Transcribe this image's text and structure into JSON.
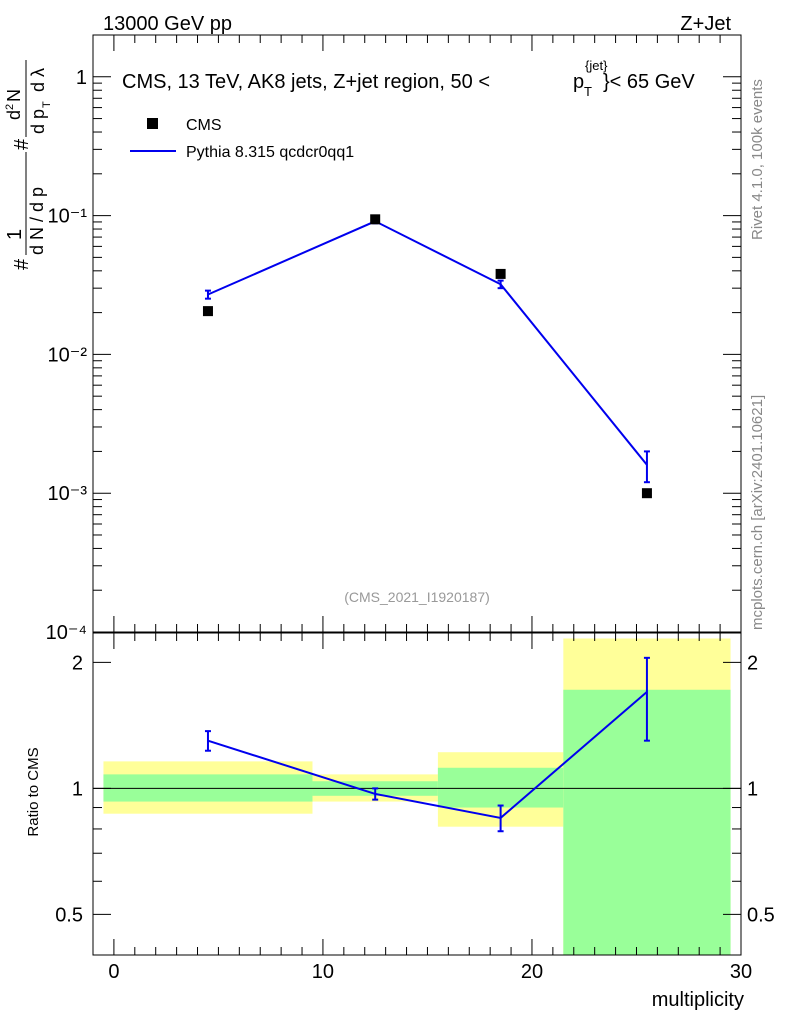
{
  "header": {
    "left": "13000 GeV pp",
    "right": "Z+Jet"
  },
  "side_text": {
    "rivet": "Rivet 4.1.0,  100k events",
    "mcplots": "mcplots.cern.ch [arXiv:2401.10621]"
  },
  "chart_data": [
    {
      "type": "line",
      "panel": "main",
      "title": "CMS, 13 TeV, AK8 jets, Z+jet region, 50 <p_T^{jet}< 65 GeV",
      "title_parts": {
        "pre": "CMS, 13 TeV, AK8 jets, Z+jet region, 50 <",
        "p": "p",
        "sub": "T",
        "sup": "{jet}",
        "post": "}< 65 GeV"
      },
      "ylabel": "1/#dN/dp_T #d²N/dp_T dλ",
      "ylabel_parts": {
        "hash": "#",
        "one": "1",
        "dN": "d N / d p",
        "dN2": "d",
        "N": "N",
        "pT": "d p",
        "T": "T",
        "lam": "d λ",
        "two": "2"
      },
      "yscale": "log",
      "ylim": [
        0.0001,
        2
      ],
      "xlim": [
        -1,
        30
      ],
      "ytick_labels": [
        "1",
        "10⁻¹",
        "10⁻²",
        "10⁻³",
        "10⁻⁴"
      ],
      "yticks": [
        1,
        0.1,
        0.01,
        0.001,
        0.0001
      ],
      "watermark": "(CMS_2021_I1920187)",
      "legend": {
        "placement": "top-left",
        "entries": [
          "CMS",
          "Pythia 8.315 qcdcr0qq1"
        ]
      },
      "series": [
        {
          "name": "CMS",
          "marker": "square",
          "x": [
            4.5,
            12.5,
            18.5,
            25.5
          ],
          "y": [
            0.0205,
            0.094,
            0.038,
            0.001
          ]
        },
        {
          "name": "Pythia 8.315 qcdcr0qq1",
          "color": "#0000ee",
          "x": [
            4.5,
            12.5,
            18.5,
            25.5
          ],
          "y": [
            0.027,
            0.091,
            0.032,
            0.0016
          ],
          "yerr_low": [
            0.0018,
            0.003,
            0.002,
            0.0004
          ],
          "yerr_high": [
            0.0018,
            0.003,
            0.002,
            0.0004
          ]
        }
      ]
    },
    {
      "type": "line",
      "panel": "ratio",
      "ylabel": "Ratio to CMS",
      "xlabel": "multiplicity",
      "yscale": "log",
      "ylim": [
        0.4,
        2.35
      ],
      "xlim": [
        -1,
        30
      ],
      "xticks": [
        0,
        10,
        20,
        30
      ],
      "xtick_labels": [
        "0",
        "10",
        "20",
        "30"
      ],
      "yticks": [
        0.5,
        1,
        2
      ],
      "ytick_labels": [
        "0.5",
        "1",
        "2"
      ],
      "bands": [
        {
          "xlow": -0.5,
          "xhigh": 9.5,
          "yellow": [
            0.87,
            1.16
          ],
          "green": [
            0.93,
            1.08
          ]
        },
        {
          "xlow": 9.5,
          "xhigh": 15.5,
          "yellow": [
            0.93,
            1.08
          ],
          "green": [
            0.96,
            1.04
          ]
        },
        {
          "xlow": 15.5,
          "xhigh": 21.5,
          "yellow": [
            0.81,
            1.22
          ],
          "green": [
            0.9,
            1.12
          ]
        },
        {
          "xlow": 21.5,
          "xhigh": 29.5,
          "yellow": [
            0.4,
            2.28
          ],
          "green": [
            0.4,
            1.72
          ]
        }
      ],
      "series": [
        {
          "name": "Pythia 8.315 qcdcr0qq1",
          "color": "#0000ee",
          "x": [
            4.5,
            12.5,
            18.5,
            25.5
          ],
          "y": [
            1.3,
            0.97,
            0.85,
            1.7
          ],
          "yerr_low": [
            0.07,
            0.03,
            0.06,
            0.4
          ],
          "yerr_high": [
            0.07,
            0.03,
            0.06,
            0.35
          ]
        }
      ]
    }
  ]
}
